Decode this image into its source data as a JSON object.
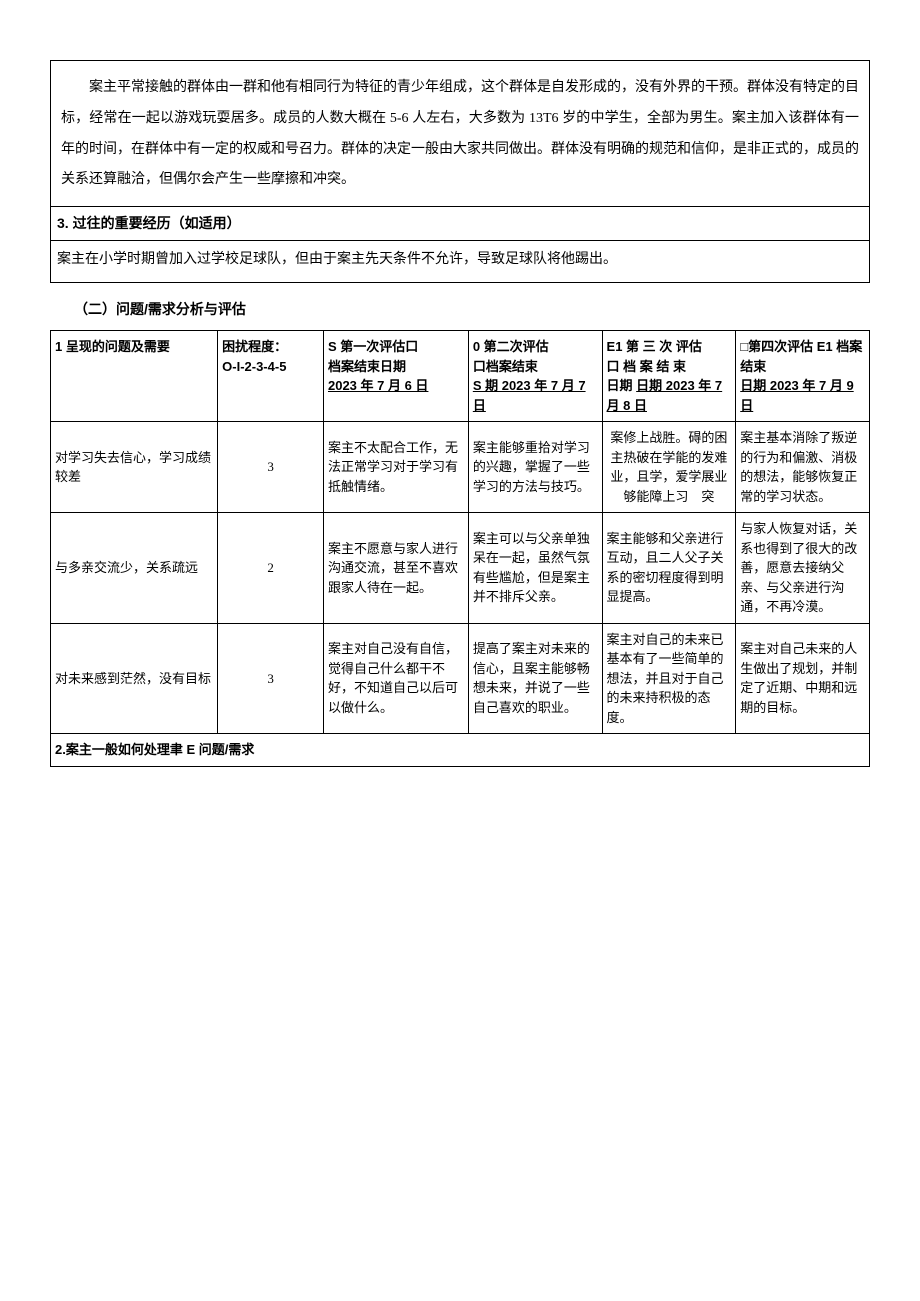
{
  "intro": {
    "para1": "案主平常接触的群体由一群和他有相同行为特征的青少年组成，这个群体是自发形成的，没有外界的干预。群体没有特定的目标，经常在一起以游戏玩耍居多。成员的人数大概在 5-6 人左右，大多数为 13T6 岁的中学生，全部为男生。案主加入该群体有一年的时间，在群体中有一定的权威和号召力。群体的决定一般由大家共同做出。群体没有明确的规范和信仰，是非正式的，成员的关系还算融洽，但偶尔会产生一些摩擦和冲突。"
  },
  "section3": {
    "title": "3. 过往的重要经历（如适用）",
    "body": "案主在小学时期曾加入过学校足球队，但由于案主先天条件不允许，导致足球队将他踢出。"
  },
  "section_heading": "（二）问题/需求分析与评估",
  "table": {
    "header": {
      "issue": "1 呈现的问题及需要",
      "difficulty_label1": "困扰程度：",
      "difficulty_label2": "O-I-2-3-4-5",
      "a1_l1": "S 第一次评估口",
      "a1_l2": "档案结束日期",
      "a1_l3": "2023 年 7 月 6 日",
      "a2_l1": "0 第二次评估",
      "a2_l2": "口档案结束",
      "a2_l3": "S 期 2023 年 7 月 7 日",
      "a3_l1": "E1 第 三 次 评估",
      "a3_l2": "口 档 案 结 束",
      "a3_l3": "日期 2023 年 7 月 8 日",
      "a4_l1": "□第四次评估 E1 档案结束",
      "a4_l2": "日期 2023 年 7 月 9 日"
    },
    "rows": [
      {
        "issue": "对学习失去信心，学习成绩较差",
        "difficulty": "3",
        "a1": "案主不太配合工作，无法正常学习对于学习有抵触情绪。",
        "a2": "案主能够重拾对学习的兴趣，掌握了一些学习的方法与技巧。",
        "a3": "案修上战胜。碍的困主热破在学能的发难业，且学，爱学展业够能障上习　突",
        "a4": "案主基本消除了叛逆的行为和偏激、消极的想法，能够恢复正常的学习状态。"
      },
      {
        "issue": "与多亲交流少，关系疏远",
        "difficulty": "2",
        "a1": "案主不愿意与家人进行沟通交流，甚至不喜欢跟家人待在一起。",
        "a2": "案主可以与父亲单独呆在一起，虽然气氛有些尴尬，但是案主并不排斥父亲。",
        "a3": "案主能够和父亲进行互动，且二人父子关系的密切程度得到明显提高。",
        "a4": "与家人恢复对话，关系也得到了很大的改善，愿意去接纳父亲、与父亲进行沟通，不再冷漠。"
      },
      {
        "issue": "对未来感到茫然，没有目标",
        "difficulty": "3",
        "a1": "案主对自己没有自信，觉得自己什么都干不好，不知道自己以后可以做什么。",
        "a2": "提高了案主对未来的信心，且案主能够畅想未来，并说了一些自己喜欢的职业。",
        "a3": "案主对自己的未来已基本有了一些简单的想法，并且对于自己的未来持积极的态度。",
        "a4": "案主对自己未来的人生做出了规划，并制定了近期、中期和远期的目标。"
      }
    ],
    "footer": "2.案主一般如何处理聿 E 问题/需求"
  }
}
